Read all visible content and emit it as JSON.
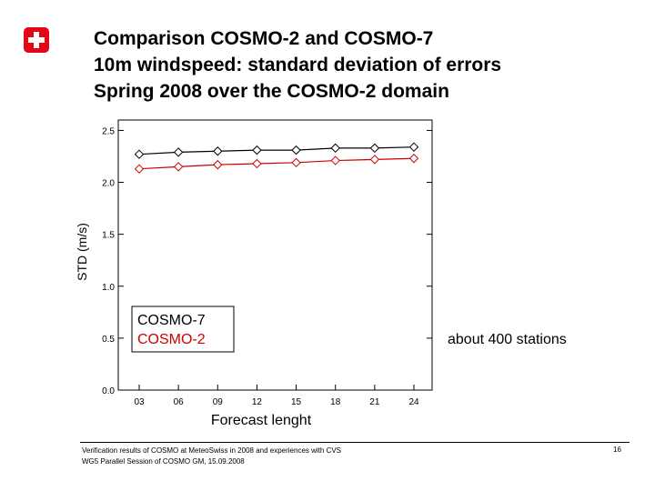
{
  "title": {
    "lines": [
      "Comparison COSMO-2 and COSMO-7",
      "10m windspeed: standard deviation of errors",
      "Spring 2008 over the COSMO-2 domain"
    ]
  },
  "logo": {
    "icon": "swiss-cross-icon",
    "color": "#e30613"
  },
  "annotation": "about 400 stations",
  "footer": {
    "lines": [
      "Verification results of COSMO at MeteoSwiss in 2008 and experiences with CVS",
      "WG5 Parallel Session of COSMO GM, 15.09.2008"
    ],
    "page_number": "16"
  },
  "chart_data": {
    "type": "line",
    "xlabel": "Forecast lenght",
    "ylabel": "STD (m/s)",
    "categories": [
      "03",
      "06",
      "09",
      "12",
      "15",
      "18",
      "21",
      "24"
    ],
    "yticks": [
      "0.0",
      "0.5",
      "1.0",
      "1.5",
      "2.0",
      "2.5"
    ],
    "ylim": [
      0,
      2.6
    ],
    "grid": false,
    "legend_placement": "bottom-left",
    "marker": "diamond",
    "series": [
      {
        "name": "COSMO-7",
        "color": "#000000",
        "values": [
          2.27,
          2.29,
          2.3,
          2.31,
          2.31,
          2.33,
          2.33,
          2.34
        ]
      },
      {
        "name": "COSMO-2",
        "color": "#cc0000",
        "values": [
          2.13,
          2.15,
          2.17,
          2.18,
          2.19,
          2.21,
          2.22,
          2.23
        ]
      }
    ]
  }
}
